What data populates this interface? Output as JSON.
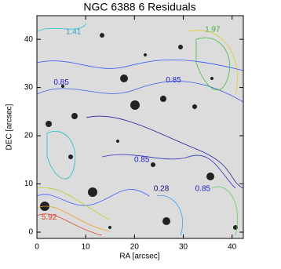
{
  "chart_data": {
    "type": "contour",
    "title": "NGC 6388 6 Residuals",
    "xlabel": "RA [arcsec]",
    "ylabel": "DEC [arcsec]",
    "xlim": [
      0,
      42.3
    ],
    "ylim": [
      -1.3,
      44.9
    ],
    "xticks": [
      0,
      10,
      20,
      30,
      40
    ],
    "yticks": [
      0,
      10,
      20,
      30,
      40
    ],
    "annotations": [
      {
        "text": "0.85",
        "x": 5,
        "y": 31,
        "color": "#2020d0"
      },
      {
        "text": "0.85",
        "x": 28,
        "y": 31.5,
        "color": "#2020d0"
      },
      {
        "text": "0.85",
        "x": 21.5,
        "y": 15,
        "color": "#2020d0"
      },
      {
        "text": "0.85",
        "x": 34,
        "y": 9,
        "color": "#2020d0"
      },
      {
        "text": "0.28",
        "x": 25.5,
        "y": 9,
        "color": "#101080"
      },
      {
        "text": "5.92",
        "x": 2.5,
        "y": 3,
        "color": "#e04020"
      },
      {
        "text": "1.97",
        "x": 36,
        "y": 42,
        "color": "#40b040"
      },
      {
        "text": "1.41",
        "x": 7.5,
        "y": 41.5,
        "color": "#30a0d0"
      }
    ]
  }
}
